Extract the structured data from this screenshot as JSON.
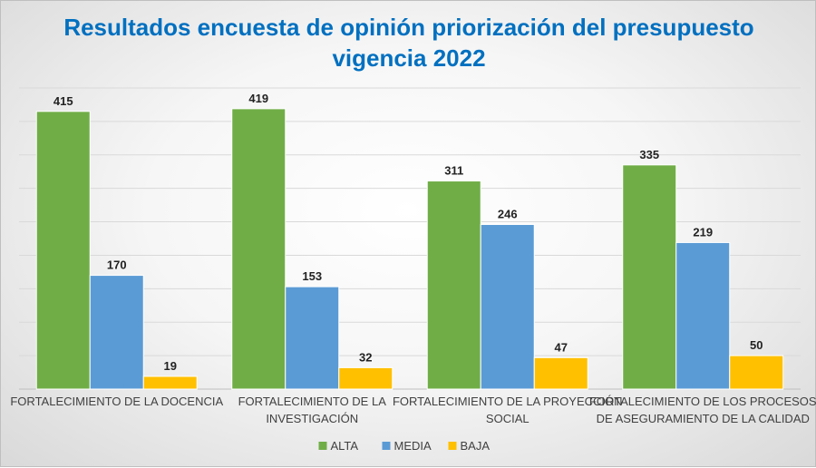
{
  "chart_data": {
    "type": "bar",
    "title_lines": [
      "Resultados encuesta de opinión priorización del presupuesto",
      "vigencia 2022"
    ],
    "categories": [
      [
        "FORTALECIMIENTO DE LA DOCENCIA"
      ],
      [
        "FORTALECIMIENTO DE LA",
        "INVESTIGACIÓN"
      ],
      [
        "FORTALECIMIENTO DE LA PROYECCIÓN",
        "SOCIAL"
      ],
      [
        "FORTALECIMIENTO DE LOS PROCESOS",
        "DE ASEGURAMIENTO DE LA CALIDAD"
      ]
    ],
    "series": [
      {
        "name": "ALTA",
        "color": "#70ad47",
        "values": [
          415,
          419,
          311,
          335
        ]
      },
      {
        "name": "MEDIA",
        "color": "#5b9bd5",
        "values": [
          170,
          153,
          246,
          219
        ]
      },
      {
        "name": "BAJA",
        "color": "#ffc000",
        "values": [
          19,
          32,
          47,
          50
        ]
      }
    ],
    "ylim": [
      0,
      450
    ],
    "y_gridlines": [
      0,
      50,
      100,
      150,
      200,
      250,
      300,
      350,
      400,
      450
    ],
    "y_tick_labels_shown": false,
    "legend_position": "bottom",
    "grid": true
  }
}
